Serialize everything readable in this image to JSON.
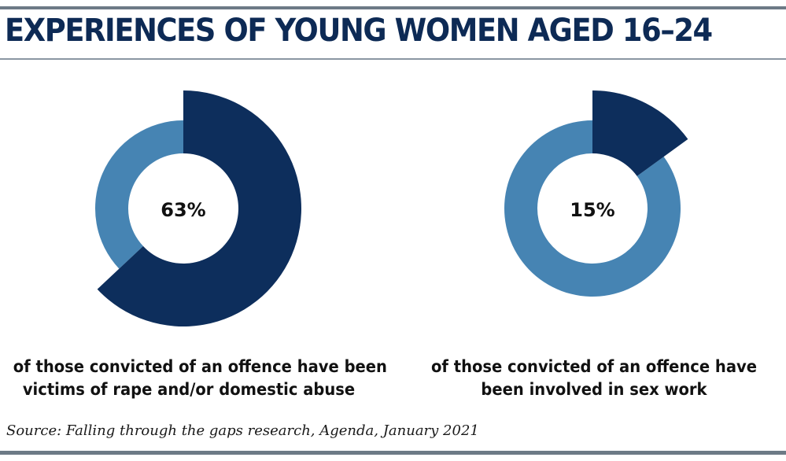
{
  "title": "EXPERIENCES OF YOUNG WOMEN AGED 16–24",
  "source": "Source: Falling through the gaps research, Agenda, January 2021",
  "colors": {
    "highlight": "#0d2e5c",
    "remainder": "#4684b3",
    "title": "#0d2a55",
    "rule": "#6d7a86"
  },
  "chart_data": [
    {
      "type": "pie",
      "value_label": "63%",
      "values": [
        63,
        37
      ],
      "caption_lines": [
        "of those convicted of an offence have been",
        "victims of rape and/or domestic abuse"
      ]
    },
    {
      "type": "pie",
      "value_label": "15%",
      "values": [
        15,
        85
      ],
      "caption_lines": [
        "of those convicted of an offence have",
        "been involved in sex work"
      ]
    }
  ]
}
